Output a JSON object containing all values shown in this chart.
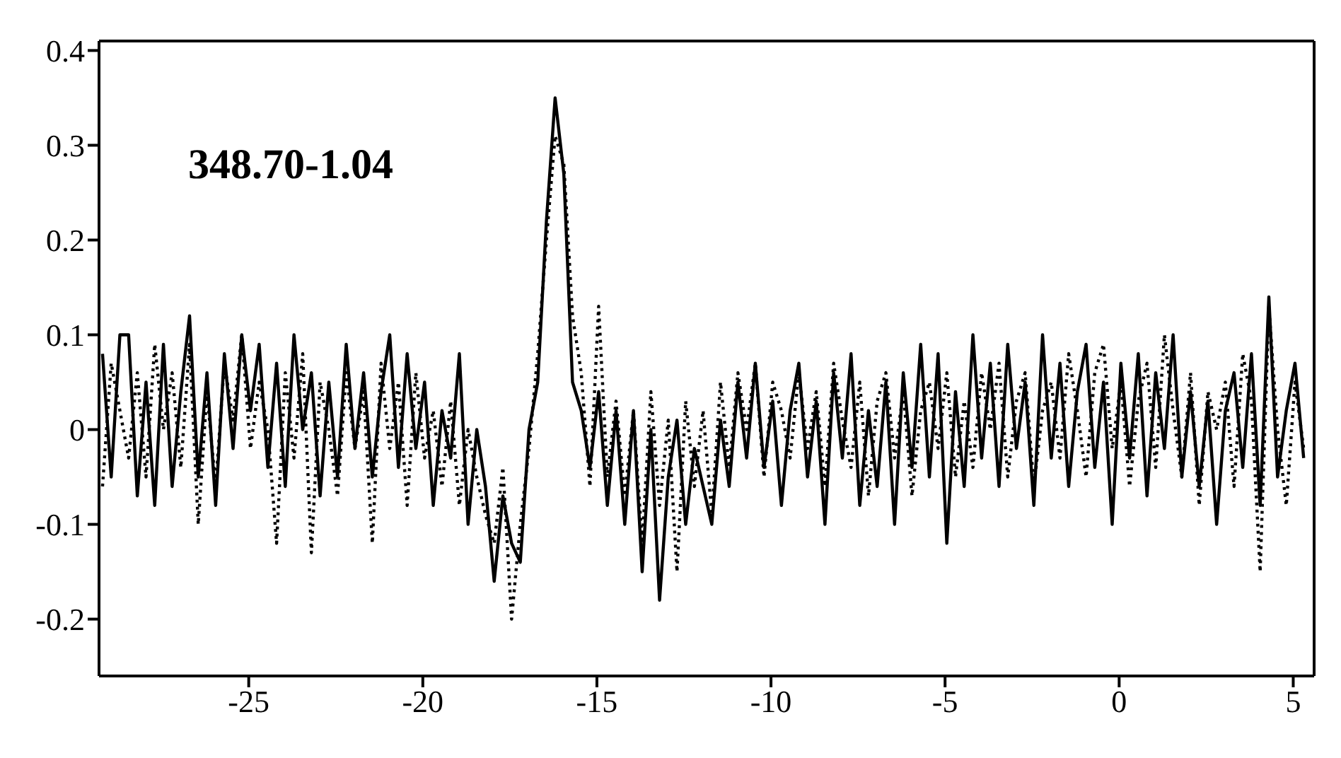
{
  "chart_data": {
    "type": "line",
    "annotations": [
      "348.70-1.04"
    ],
    "x": [
      -29.2,
      -28.95,
      -28.7,
      -28.45,
      -28.2,
      -27.95,
      -27.7,
      -27.45,
      -27.2,
      -26.95,
      -26.7,
      -26.45,
      -26.2,
      -25.95,
      -25.7,
      -25.45,
      -25.2,
      -24.95,
      -24.7,
      -24.45,
      -24.2,
      -23.95,
      -23.7,
      -23.45,
      -23.2,
      -22.95,
      -22.7,
      -22.45,
      -22.2,
      -21.95,
      -21.7,
      -21.45,
      -21.2,
      -20.95,
      -20.7,
      -20.45,
      -20.2,
      -19.95,
      -19.7,
      -19.45,
      -19.2,
      -18.95,
      -18.7,
      -18.45,
      -18.2,
      -17.95,
      -17.7,
      -17.45,
      -17.2,
      -16.95,
      -16.7,
      -16.45,
      -16.2,
      -15.95,
      -15.7,
      -15.45,
      -15.2,
      -14.95,
      -14.7,
      -14.45,
      -14.2,
      -13.95,
      -13.7,
      -13.45,
      -13.2,
      -12.95,
      -12.7,
      -12.45,
      -12.2,
      -11.95,
      -11.7,
      -11.45,
      -11.2,
      -10.95,
      -10.7,
      -10.45,
      -10.2,
      -9.95,
      -9.7,
      -9.45,
      -9.2,
      -8.95,
      -8.7,
      -8.45,
      -8.2,
      -7.95,
      -7.7,
      -7.45,
      -7.2,
      -6.95,
      -6.7,
      -6.45,
      -6.2,
      -5.95,
      -5.7,
      -5.45,
      -5.2,
      -4.95,
      -4.7,
      -4.45,
      -4.2,
      -3.95,
      -3.7,
      -3.45,
      -3.2,
      -2.95,
      -2.7,
      -2.45,
      -2.2,
      -1.95,
      -1.7,
      -1.45,
      -1.2,
      -0.95,
      -0.7,
      -0.45,
      -0.2,
      0.05,
      0.3,
      0.55,
      0.8,
      1.05,
      1.3,
      1.55,
      1.8,
      2.05,
      2.3,
      2.55,
      2.8,
      3.05,
      3.3,
      3.55,
      3.8,
      4.05,
      4.3,
      4.55,
      4.8,
      5.05,
      5.3
    ],
    "series": [
      {
        "color": "#000000",
        "line_style": "solid",
        "values": [
          0.08,
          -0.05,
          0.1,
          0.1,
          -0.07,
          0.05,
          -0.08,
          0.09,
          -0.06,
          0.04,
          0.12,
          -0.05,
          0.06,
          -0.08,
          0.08,
          -0.02,
          0.1,
          0.02,
          0.09,
          -0.04,
          0.07,
          -0.06,
          0.1,
          0.0,
          0.06,
          -0.07,
          0.05,
          -0.05,
          0.09,
          -0.02,
          0.06,
          -0.05,
          0.04,
          0.1,
          -0.04,
          0.08,
          -0.02,
          0.05,
          -0.08,
          0.02,
          -0.03,
          0.08,
          -0.1,
          0.0,
          -0.06,
          -0.16,
          -0.07,
          -0.12,
          -0.14,
          0.0,
          0.05,
          0.22,
          0.35,
          0.27,
          0.05,
          0.02,
          -0.04,
          0.04,
          -0.08,
          0.02,
          -0.1,
          0.02,
          -0.15,
          0.0,
          -0.18,
          -0.05,
          0.01,
          -0.1,
          -0.02,
          -0.06,
          -0.1,
          0.01,
          -0.06,
          0.05,
          -0.03,
          0.07,
          -0.04,
          0.03,
          -0.08,
          0.02,
          0.07,
          -0.05,
          0.03,
          -0.1,
          0.06,
          -0.03,
          0.08,
          -0.08,
          0.02,
          -0.06,
          0.05,
          -0.1,
          0.06,
          -0.04,
          0.09,
          -0.05,
          0.08,
          -0.12,
          0.04,
          -0.06,
          0.1,
          -0.03,
          0.07,
          -0.06,
          0.09,
          -0.02,
          0.05,
          -0.08,
          0.1,
          -0.03,
          0.07,
          -0.06,
          0.04,
          0.09,
          -0.04,
          0.05,
          -0.1,
          0.07,
          -0.03,
          0.08,
          -0.07,
          0.06,
          -0.02,
          0.1,
          -0.05,
          0.04,
          -0.06,
          0.03,
          -0.1,
          0.02,
          0.06,
          -0.04,
          0.08,
          -0.08,
          0.14,
          -0.05,
          0.02,
          0.07,
          -0.03
        ]
      },
      {
        "color": "#000000",
        "line_style": "dotted",
        "values": [
          -0.06,
          0.07,
          0.02,
          -0.03,
          0.06,
          -0.05,
          0.09,
          0.0,
          0.06,
          -0.04,
          0.09,
          -0.1,
          0.04,
          -0.06,
          0.07,
          0.01,
          0.1,
          -0.02,
          0.05,
          0.0,
          -0.12,
          0.06,
          -0.03,
          0.08,
          -0.13,
          0.05,
          0.0,
          -0.07,
          0.06,
          -0.02,
          0.04,
          -0.12,
          0.07,
          -0.02,
          0.05,
          -0.08,
          0.06,
          -0.03,
          0.02,
          -0.06,
          0.03,
          -0.08,
          0.0,
          -0.05,
          -0.09,
          -0.12,
          -0.04,
          -0.2,
          -0.1,
          -0.02,
          0.08,
          0.2,
          0.31,
          0.28,
          0.12,
          0.06,
          -0.06,
          0.13,
          -0.05,
          0.03,
          -0.07,
          0.02,
          -0.12,
          0.04,
          -0.08,
          0.01,
          -0.15,
          0.03,
          -0.06,
          0.02,
          -0.09,
          0.05,
          -0.04,
          0.06,
          0.0,
          0.07,
          -0.05,
          0.05,
          0.02,
          -0.03,
          0.06,
          -0.02,
          0.04,
          -0.06,
          0.07,
          0.01,
          -0.04,
          0.05,
          -0.07,
          0.03,
          0.06,
          -0.03,
          0.04,
          -0.07,
          0.02,
          0.05,
          -0.02,
          0.06,
          -0.05,
          0.03,
          -0.04,
          0.06,
          0.0,
          0.07,
          -0.05,
          0.03,
          0.06,
          -0.06,
          0.02,
          0.05,
          -0.03,
          0.08,
          0.02,
          -0.05,
          0.06,
          0.09,
          -0.02,
          0.05,
          -0.06,
          0.03,
          0.07,
          -0.04,
          0.1,
          0.02,
          -0.05,
          0.06,
          -0.08,
          0.04,
          0.0,
          0.05,
          -0.06,
          0.08,
          0.03,
          -0.15,
          0.13,
          0.0,
          -0.08,
          0.05,
          -0.02
        ]
      }
    ],
    "xlim": [
      -29.3,
      5.6
    ],
    "xticks": [
      -25,
      -20,
      -15,
      -10,
      -5,
      0,
      5
    ],
    "ylim": [
      -0.26,
      0.41
    ],
    "yticks": [
      -0.2,
      -0.1,
      0,
      0.1,
      0.2,
      0.3,
      0.4
    ],
    "grid": false,
    "legend": false,
    "marker": "none"
  }
}
